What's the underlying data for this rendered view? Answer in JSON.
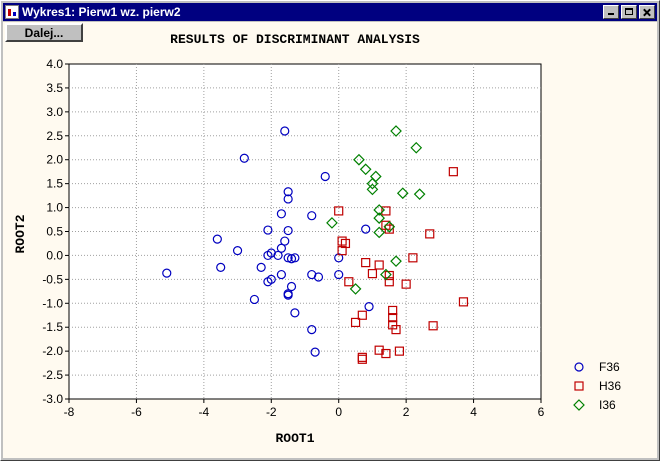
{
  "window": {
    "title": "Wykres1: Pierw1 wz. pierw2",
    "icon": "chart-app-icon",
    "controls": [
      "minimize-icon",
      "maximize-icon",
      "close-icon"
    ]
  },
  "toolbar": {
    "dalej_label": "Dalej..."
  },
  "chart_data": {
    "type": "scatter",
    "title": "RESULTS OF DISCRIMINANT ANALYSIS",
    "xlabel": "ROOT1",
    "ylabel": "ROOT2",
    "xlim": [
      -8,
      6
    ],
    "ylim": [
      -3,
      4
    ],
    "xticks": [
      "-8",
      "-6",
      "-4",
      "-2",
      "0",
      "2",
      "4",
      "6"
    ],
    "yticks": [
      "4.0",
      "3.5",
      "3.0",
      "2.5",
      "2.0",
      "1.5",
      "1.0",
      "0.5",
      "0.0",
      "-0.5",
      "-1.0",
      "-1.5",
      "-2.0",
      "-2.5",
      "-3.0"
    ],
    "grid": true,
    "legend_position": "bottom-right",
    "series": [
      {
        "name": "F36",
        "marker": "circle",
        "color": "#0000c0",
        "points": [
          [
            -1.6,
            2.6
          ],
          [
            -2.8,
            2.03
          ],
          [
            -1.5,
            1.33
          ],
          [
            -1.5,
            1.18
          ],
          [
            -0.4,
            1.65
          ],
          [
            -1.7,
            0.87
          ],
          [
            -0.8,
            0.83
          ],
          [
            -2.1,
            0.53
          ],
          [
            -1.5,
            0.52
          ],
          [
            -3.6,
            0.34
          ],
          [
            -3.0,
            0.1
          ],
          [
            -1.6,
            0.3
          ],
          [
            -1.7,
            0.15
          ],
          [
            -2.0,
            0.05
          ],
          [
            -1.8,
            0.0
          ],
          [
            -2.1,
            0.0
          ],
          [
            -1.5,
            -0.05
          ],
          [
            -1.3,
            -0.05
          ],
          [
            -1.4,
            -0.07
          ],
          [
            -3.5,
            -0.25
          ],
          [
            -2.3,
            -0.25
          ],
          [
            -5.1,
            -0.37
          ],
          [
            -1.7,
            -0.4
          ],
          [
            -2.0,
            -0.5
          ],
          [
            -0.8,
            -0.4
          ],
          [
            -0.6,
            -0.45
          ],
          [
            -2.1,
            -0.55
          ],
          [
            -1.4,
            -0.65
          ],
          [
            -1.5,
            -0.8
          ],
          [
            -2.5,
            -0.92
          ],
          [
            0.0,
            -0.4
          ],
          [
            0.0,
            -0.05
          ],
          [
            0.9,
            -1.07
          ],
          [
            -1.3,
            -1.2
          ],
          [
            -0.8,
            -1.55
          ],
          [
            -0.7,
            -2.02
          ],
          [
            0.8,
            0.55
          ],
          [
            -1.5,
            -0.83
          ]
        ]
      },
      {
        "name": "H36",
        "marker": "square",
        "color": "#c00000",
        "points": [
          [
            3.4,
            1.75
          ],
          [
            1.4,
            0.93
          ],
          [
            0.0,
            0.93
          ],
          [
            1.4,
            0.63
          ],
          [
            1.5,
            0.55
          ],
          [
            2.7,
            0.45
          ],
          [
            0.1,
            0.3
          ],
          [
            0.2,
            0.25
          ],
          [
            0.1,
            0.1
          ],
          [
            2.2,
            -0.05
          ],
          [
            0.8,
            -0.15
          ],
          [
            1.2,
            -0.2
          ],
          [
            1.0,
            -0.38
          ],
          [
            1.5,
            -0.42
          ],
          [
            1.5,
            -0.55
          ],
          [
            0.3,
            -0.55
          ],
          [
            2.0,
            -0.6
          ],
          [
            3.7,
            -0.97
          ],
          [
            1.6,
            -1.15
          ],
          [
            0.7,
            -1.25
          ],
          [
            1.6,
            -1.3
          ],
          [
            0.5,
            -1.4
          ],
          [
            1.6,
            -1.45
          ],
          [
            2.8,
            -1.47
          ],
          [
            1.7,
            -1.55
          ],
          [
            1.2,
            -1.98
          ],
          [
            1.4,
            -2.05
          ],
          [
            1.8,
            -2.0
          ],
          [
            0.7,
            -2.13
          ],
          [
            0.7,
            -2.17
          ]
        ]
      },
      {
        "name": "I36",
        "marker": "diamond",
        "color": "#008000",
        "points": [
          [
            1.7,
            2.6
          ],
          [
            2.3,
            2.25
          ],
          [
            0.6,
            2.0
          ],
          [
            0.8,
            1.8
          ],
          [
            1.1,
            1.65
          ],
          [
            1.0,
            1.5
          ],
          [
            1.0,
            1.38
          ],
          [
            1.9,
            1.3
          ],
          [
            2.4,
            1.28
          ],
          [
            1.2,
            0.95
          ],
          [
            1.2,
            0.78
          ],
          [
            -0.2,
            0.68
          ],
          [
            1.5,
            0.6
          ],
          [
            1.2,
            0.48
          ],
          [
            1.7,
            -0.12
          ],
          [
            1.4,
            -0.4
          ],
          [
            0.5,
            -0.7
          ]
        ]
      }
    ]
  }
}
